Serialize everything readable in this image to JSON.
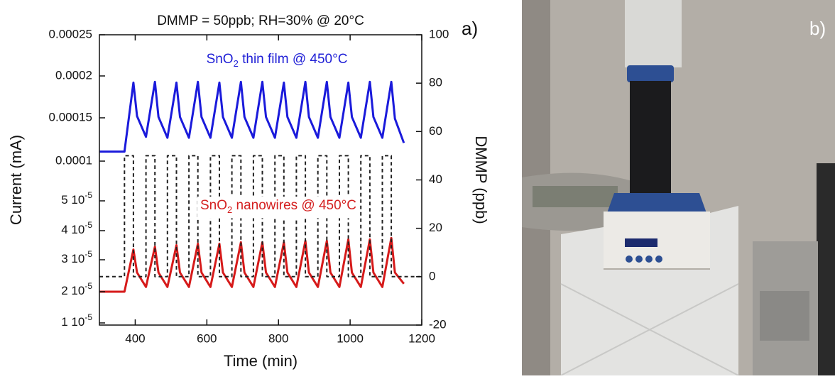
{
  "chart_data": {
    "type": "line",
    "title": "DMMP = 50ppb; RH=30% @ 20°C",
    "panel_label": "a)",
    "xlabel": "Time (min)",
    "ylabel": "Current (mA)",
    "y2label": "DMMP (ppb)",
    "xlim": [
      300,
      1200
    ],
    "xticks": [
      400,
      600,
      800,
      1000,
      1200
    ],
    "ylim": [
      1e-05,
      0.00025
    ],
    "yticks": [
      0.00025,
      0.0002,
      0.00015,
      0.0001,
      {
        "value": 5e-05,
        "label": [
          "5 10",
          "-5"
        ]
      },
      {
        "value": 4e-05,
        "label": [
          "4 10",
          "-5"
        ]
      },
      {
        "value": 3e-05,
        "label": [
          "3 10",
          "-5"
        ]
      },
      {
        "value": 2e-05,
        "label": [
          "2 10",
          "-5"
        ]
      },
      {
        "value": 1e-05,
        "label": [
          "1 10",
          "-5"
        ]
      }
    ],
    "y2lim": [
      -20,
      100
    ],
    "y2ticks": [
      -20,
      0,
      20,
      40,
      60,
      80,
      100
    ],
    "annotations": [
      {
        "text": [
          "SnO",
          "2",
          " thin film @ 450°C"
        ],
        "color": "#1f1fd6"
      },
      {
        "text": [
          "SnO",
          "2",
          " nanowires @ 450°C"
        ],
        "color": "#d42020"
      }
    ],
    "series": [
      {
        "color": "#1a1adb",
        "x": [
          300,
          370,
          395,
          405,
          430,
          455,
          465,
          490,
          515,
          525,
          550,
          575,
          585,
          610,
          635,
          645,
          670,
          695,
          705,
          730,
          755,
          765,
          790,
          815,
          825,
          850,
          875,
          885,
          910,
          935,
          945,
          970,
          995,
          1005,
          1030,
          1055,
          1065,
          1090,
          1115,
          1125,
          1150
        ],
        "values": [
          0.000111,
          0.000111,
          0.000192,
          0.000152,
          0.000128,
          0.000193,
          0.000151,
          0.000127,
          0.000192,
          0.000151,
          0.000127,
          0.000193,
          0.000151,
          0.000127,
          0.000192,
          0.000151,
          0.000127,
          0.000193,
          0.000151,
          0.000127,
          0.000193,
          0.000151,
          0.000127,
          0.000192,
          0.000151,
          0.000127,
          0.000193,
          0.000151,
          0.000127,
          0.000193,
          0.000151,
          0.000127,
          0.000192,
          0.000151,
          0.000127,
          0.000193,
          0.000151,
          0.000127,
          0.000193,
          0.000149,
          0.000121
        ]
      },
      {
        "color": "#d61a1a",
        "x": [
          300,
          370,
          395,
          405,
          430,
          455,
          465,
          490,
          515,
          525,
          550,
          575,
          585,
          610,
          635,
          645,
          670,
          695,
          705,
          730,
          755,
          765,
          790,
          815,
          825,
          850,
          875,
          885,
          910,
          935,
          945,
          970,
          995,
          1005,
          1030,
          1055,
          1065,
          1090,
          1115,
          1125,
          1150
        ],
        "values": [
          2e-05,
          2e-05,
          3.35e-05,
          2.6e-05,
          2.15e-05,
          3.45e-05,
          2.6e-05,
          2.15e-05,
          3.5e-05,
          2.6e-05,
          2.15e-05,
          3.55e-05,
          2.6e-05,
          2.15e-05,
          3.55e-05,
          2.6e-05,
          2.15e-05,
          3.6e-05,
          2.6e-05,
          2.15e-05,
          3.6e-05,
          2.6e-05,
          2.15e-05,
          3.6e-05,
          2.6e-05,
          2.15e-05,
          3.65e-05,
          2.6e-05,
          2.15e-05,
          3.65e-05,
          2.6e-05,
          2.15e-05,
          3.7e-05,
          2.6e-05,
          2.15e-05,
          3.7e-05,
          2.6e-05,
          2.15e-05,
          3.75e-05,
          2.6e-05,
          2.25e-05
        ]
      },
      {
        "color": "#222222",
        "dash": true,
        "axis": "y2",
        "x": [
          300,
          370,
          370,
          395,
          395,
          430,
          430,
          455,
          455,
          490,
          490,
          515,
          515,
          550,
          550,
          575,
          575,
          610,
          610,
          635,
          635,
          670,
          670,
          695,
          695,
          730,
          730,
          755,
          755,
          790,
          790,
          815,
          815,
          850,
          850,
          875,
          875,
          910,
          910,
          935,
          935,
          970,
          970,
          995,
          995,
          1030,
          1030,
          1055,
          1055,
          1090,
          1090,
          1115,
          1115,
          1200
        ],
        "values": [
          0,
          0,
          50,
          50,
          0,
          0,
          50,
          50,
          0,
          0,
          50,
          50,
          0,
          0,
          50,
          50,
          0,
          0,
          50,
          50,
          0,
          0,
          50,
          50,
          0,
          0,
          50,
          50,
          0,
          0,
          50,
          50,
          0,
          0,
          50,
          50,
          0,
          0,
          50,
          50,
          0,
          0,
          50,
          50,
          0,
          0,
          50,
          50,
          0,
          0,
          50,
          50,
          0,
          0
        ]
      }
    ]
  },
  "photo": {
    "label": "b)"
  }
}
